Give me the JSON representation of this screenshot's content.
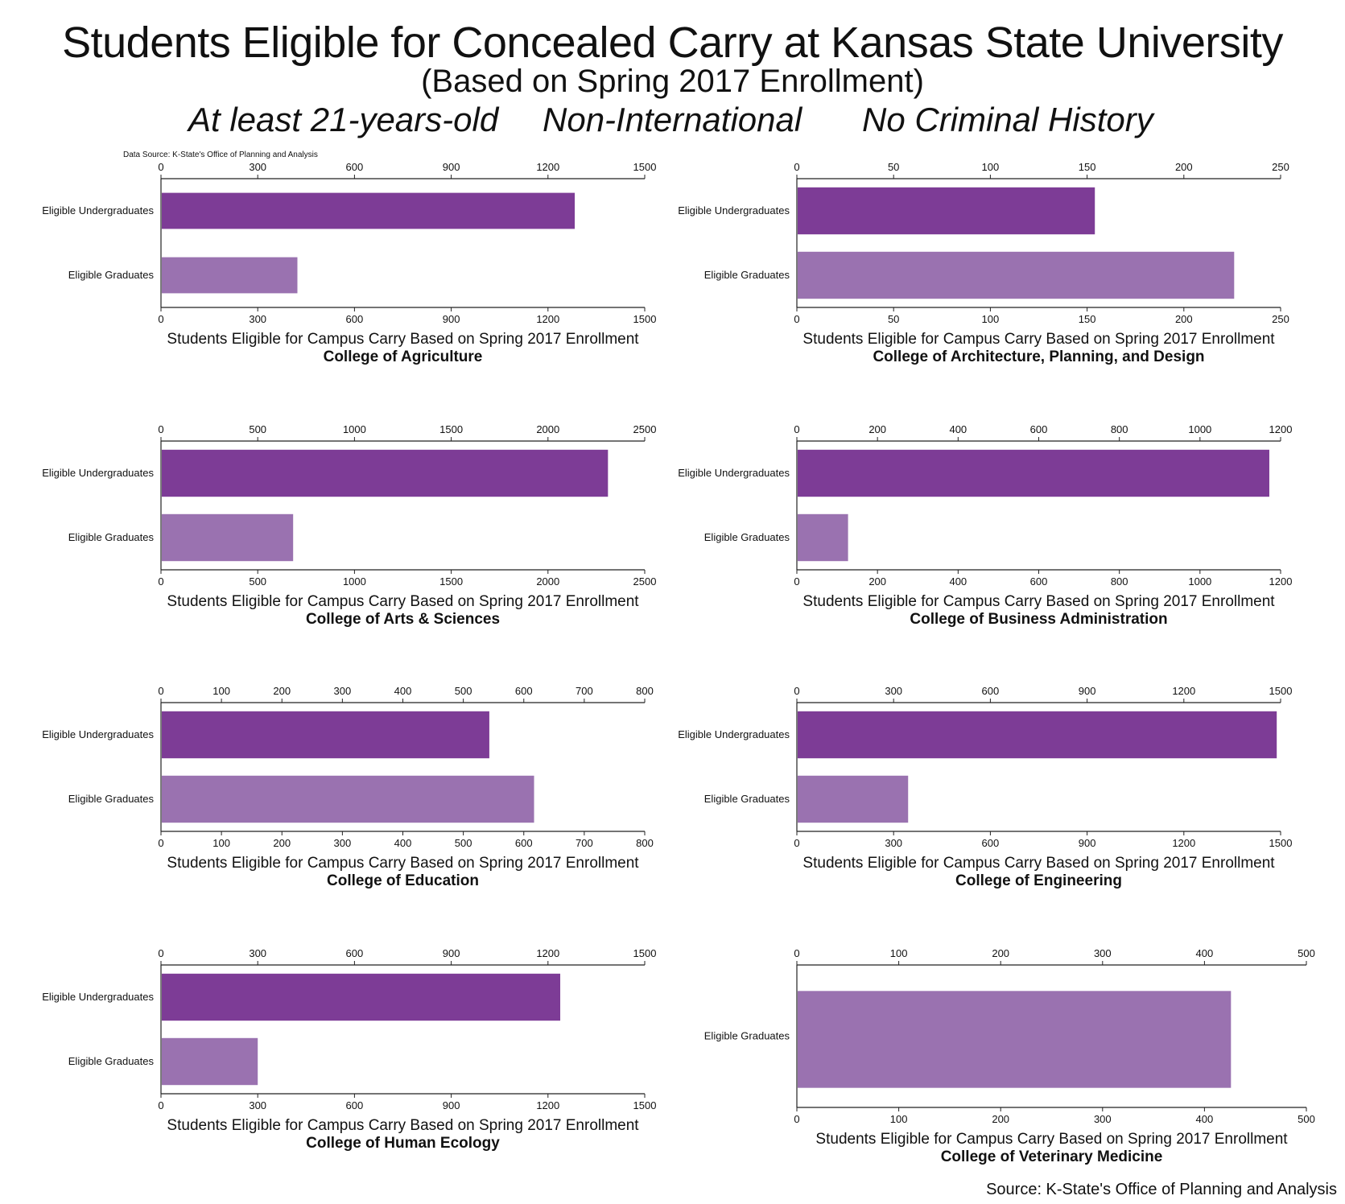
{
  "header": {
    "title": "Students Eligible for Concealed Carry at Kansas State University",
    "subtitle": "(Based on Spring 2017 Enrollment)",
    "criteria": [
      "At least 21-years-old",
      "Non-International",
      "No Criminal History"
    ],
    "data_note": "Data Source: K-State's Office of Planning and Analysis"
  },
  "colors": {
    "undergrad": "#7d3c96",
    "graduate": "#9a72b0",
    "axis": "#222222"
  },
  "chart_data": [
    {
      "type": "bar",
      "orientation": "horizontal",
      "title": "College of Agriculture",
      "xlabel": "Students Eligible for Campus Carry Based on Spring 2017 Enrollment",
      "categories": [
        "Eligible Undergraduates",
        "Eligible Graduates"
      ],
      "values": [
        1283,
        423
      ],
      "xlim": [
        0,
        1500
      ],
      "ticks": [
        0,
        300,
        600,
        900,
        1200,
        1500
      ]
    },
    {
      "type": "bar",
      "orientation": "horizontal",
      "title": "College of Architecture, Planning, and Design",
      "xlabel": "Students Eligible for Campus Carry Based on Spring 2017 Enrollment",
      "categories": [
        "Eligible Undergraduates",
        "Eligible Graduates"
      ],
      "values": [
        154,
        226
      ],
      "xlim": [
        0,
        250
      ],
      "ticks": [
        0,
        50,
        100,
        150,
        200,
        250
      ]
    },
    {
      "type": "bar",
      "orientation": "horizontal",
      "title": "College of Arts & Sciences",
      "xlabel": "Students Eligible for Campus Carry Based on Spring 2017 Enrollment",
      "categories": [
        "Eligible Undergraduates",
        "Eligible Graduates"
      ],
      "values": [
        2310,
        683
      ],
      "xlim": [
        0,
        2500
      ],
      "ticks": [
        0,
        500,
        1000,
        1500,
        2000,
        2500
      ]
    },
    {
      "type": "bar",
      "orientation": "horizontal",
      "title": "College of Business Administration",
      "xlabel": "Students Eligible for Campus Carry Based on Spring 2017 Enrollment",
      "categories": [
        "Eligible Undergraduates",
        "Eligible Graduates"
      ],
      "values": [
        1172,
        127
      ],
      "xlim": [
        0,
        1200
      ],
      "ticks": [
        0,
        200,
        400,
        600,
        800,
        1000,
        1200
      ]
    },
    {
      "type": "bar",
      "orientation": "horizontal",
      "title": "College of Education",
      "xlabel": "Students Eligible for Campus Carry Based on Spring 2017 Enrollment",
      "categories": [
        "Eligible Undergraduates",
        "Eligible Graduates"
      ],
      "values": [
        543,
        617
      ],
      "xlim": [
        0,
        800
      ],
      "ticks": [
        0,
        100,
        200,
        300,
        400,
        500,
        600,
        700,
        800
      ]
    },
    {
      "type": "bar",
      "orientation": "horizontal",
      "title": "College of Engineering",
      "xlabel": "Students Eligible for Campus Carry Based on Spring 2017 Enrollment",
      "categories": [
        "Eligible Undergraduates",
        "Eligible Graduates"
      ],
      "values": [
        1488,
        345
      ],
      "xlim": [
        0,
        1500
      ],
      "ticks": [
        0,
        300,
        600,
        900,
        1200,
        1500
      ]
    },
    {
      "type": "bar",
      "orientation": "horizontal",
      "title": "College of Human Ecology",
      "xlabel": "Students Eligible for Campus Carry Based on Spring 2017 Enrollment",
      "categories": [
        "Eligible Undergraduates",
        "Eligible Graduates"
      ],
      "values": [
        1238,
        300
      ],
      "xlim": [
        0,
        1500
      ],
      "ticks": [
        0,
        300,
        600,
        900,
        1200,
        1500
      ]
    },
    {
      "type": "bar",
      "orientation": "horizontal",
      "title": "College of Veterinary Medicine",
      "xlabel": "Students Eligible for Campus Carry Based on Spring 2017 Enrollment",
      "categories": [
        "Eligible Graduates"
      ],
      "values": [
        426
      ],
      "xlim": [
        0,
        500
      ],
      "ticks": [
        0,
        100,
        200,
        300,
        400,
        500
      ]
    }
  ],
  "footer": {
    "source": "Source: K-State's Office of Planning and Analysis"
  }
}
